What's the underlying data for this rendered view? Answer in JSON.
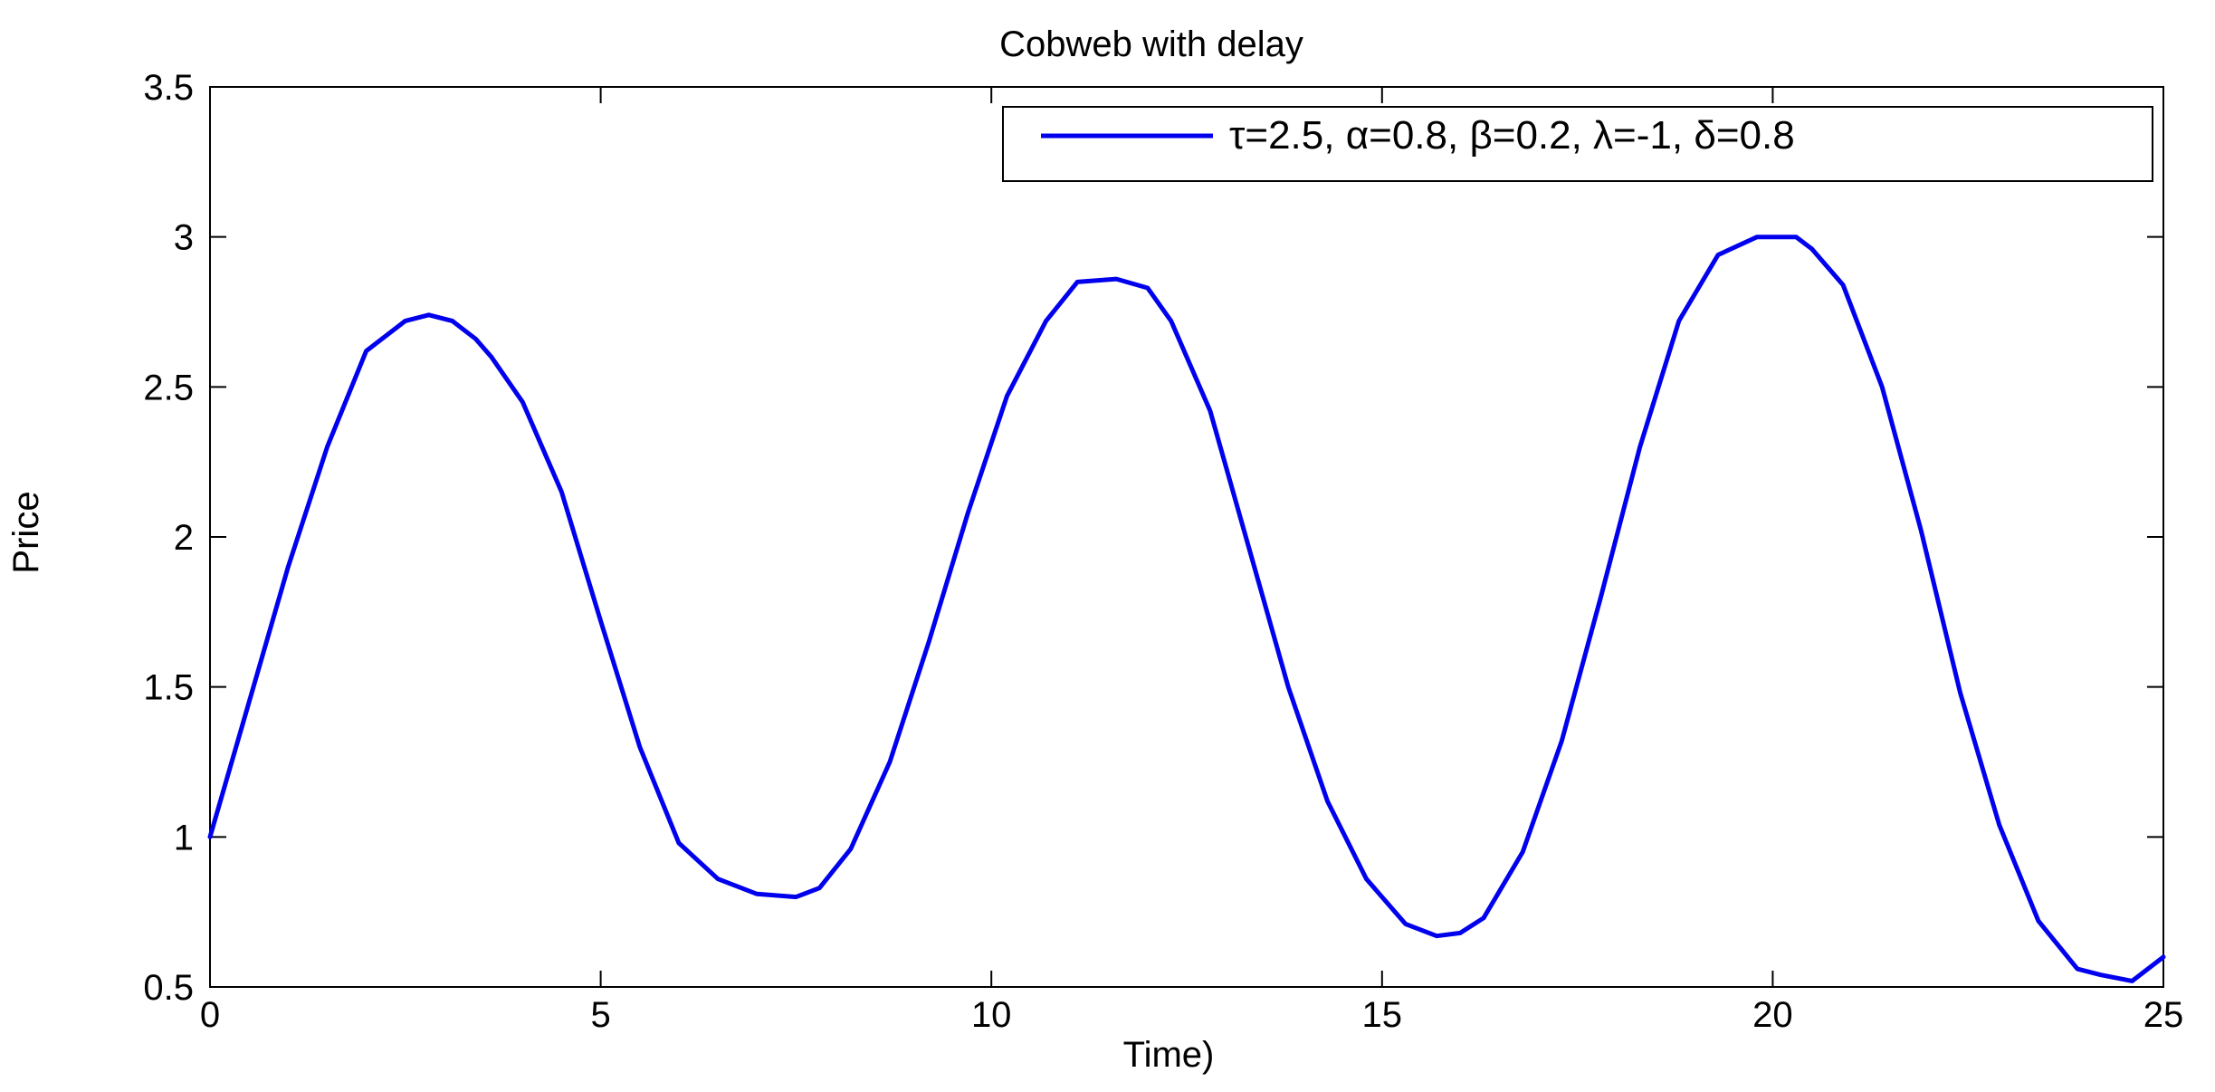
{
  "chart_data": {
    "type": "line",
    "title": "Cobweb with delay",
    "xlabel": "Time)",
    "ylabel": "Price",
    "xlim": [
      0,
      25
    ],
    "ylim": [
      0.5,
      3.5
    ],
    "xticks": [
      0,
      5,
      10,
      15,
      20,
      25
    ],
    "xtick_labels": [
      "0",
      "5",
      "10",
      "15",
      "20",
      "25"
    ],
    "yticks": [
      0.5,
      1,
      1.5,
      2,
      2.5,
      3,
      3.5
    ],
    "ytick_labels": [
      "0.5",
      "1",
      "1.5",
      "2",
      "2.5",
      "3",
      "3.5"
    ],
    "grid": false,
    "legend_position": "top-right",
    "series": [
      {
        "name": "τ=2.5, α=0.8, β=0.2, λ=-1, δ=0.8",
        "color": "#0000ee",
        "x": [
          0,
          0.5,
          1,
          1.5,
          2,
          2.5,
          2.8,
          3.1,
          3.4,
          3.6,
          4.0,
          4.5,
          5.0,
          5.5,
          6.0,
          6.5,
          7.0,
          7.5,
          7.8,
          8.2,
          8.7,
          9.2,
          9.7,
          10.2,
          10.7,
          11.1,
          11.6,
          12.0,
          12.3,
          12.8,
          13.3,
          13.8,
          14.3,
          14.8,
          15.3,
          15.7,
          16.0,
          16.3,
          16.8,
          17.3,
          17.8,
          18.3,
          18.8,
          19.3,
          19.8,
          20.3,
          20.5,
          20.9,
          21.4,
          21.9,
          22.4,
          22.9,
          23.4,
          23.9,
          24.2,
          24.6,
          25.0
        ],
        "y": [
          1.0,
          1.45,
          1.9,
          2.3,
          2.62,
          2.72,
          2.74,
          2.72,
          2.66,
          2.6,
          2.45,
          2.15,
          1.72,
          1.3,
          0.98,
          0.86,
          0.81,
          0.8,
          0.83,
          0.96,
          1.25,
          1.65,
          2.08,
          2.47,
          2.72,
          2.85,
          2.86,
          2.83,
          2.72,
          2.42,
          1.96,
          1.5,
          1.12,
          0.86,
          0.71,
          0.67,
          0.68,
          0.73,
          0.95,
          1.32,
          1.8,
          2.3,
          2.72,
          2.94,
          3.0,
          3.0,
          2.96,
          2.84,
          2.5,
          2.02,
          1.48,
          1.04,
          0.72,
          0.56,
          0.54,
          0.52,
          0.6
        ]
      }
    ]
  }
}
